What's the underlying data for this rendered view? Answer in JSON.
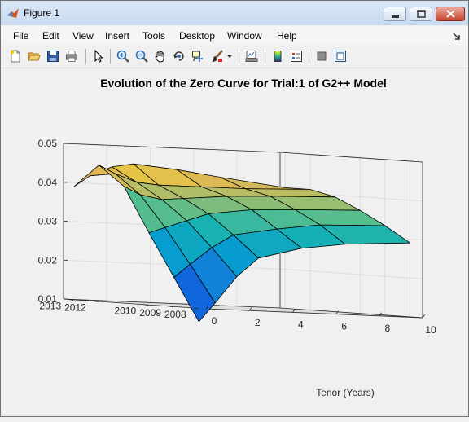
{
  "window": {
    "title": "Figure 1"
  },
  "menu": {
    "items": [
      "File",
      "Edit",
      "View",
      "Insert",
      "Tools",
      "Desktop",
      "Window",
      "Help"
    ]
  },
  "toolbar": {
    "icons": [
      "new-figure-icon",
      "open-file-icon",
      "save-icon",
      "print-icon",
      "select-arrow-icon",
      "zoom-in-icon",
      "zoom-out-icon",
      "pan-hand-icon",
      "rotate-3d-icon",
      "data-cursor-icon",
      "brush-icon",
      "brush-dropdown-icon",
      "link-plot-icon",
      "colorbar-icon",
      "legend-icon",
      "hide-tools-icon",
      "show-tools-icon"
    ]
  },
  "chart_data": {
    "type": "surface",
    "title": "Evolution of the Zero Curve for Trial:1 of G2++ Model",
    "xlabel": "Tenor (Years)",
    "ylabel": "",
    "zlabel": "",
    "x_ticks": [
      "0",
      "2",
      "4",
      "6",
      "8",
      "10"
    ],
    "y_ticks": [
      "2008",
      "2009",
      "2010",
      "2012",
      "2013"
    ],
    "z_ticks": [
      "0.01",
      "0.02",
      "0.03",
      "0.04",
      "0.05"
    ],
    "xlim": [
      0,
      10
    ],
    "ylim": [
      2007.5,
      2013.2
    ],
    "zlim": [
      0.01,
      0.05
    ],
    "colormap": "parula",
    "tenors": [
      0.25,
      1,
      2,
      3,
      5,
      7,
      10
    ],
    "years": [
      2008,
      2009,
      2010,
      2011,
      2012,
      2013
    ],
    "z": [
      [
        0.0065,
        0.0115,
        0.0185,
        0.0235,
        0.0265,
        0.028,
        0.029
      ],
      [
        0.0175,
        0.021,
        0.0255,
        0.029,
        0.031,
        0.0325,
        0.033
      ],
      [
        0.0285,
        0.03,
        0.032,
        0.034,
        0.0355,
        0.036,
        0.0365
      ],
      [
        0.04,
        0.038,
        0.037,
        0.0375,
        0.0385,
        0.039,
        0.0395
      ],
      [
        0.045,
        0.043,
        0.041,
        0.0405,
        0.0405,
        0.0405,
        0.041
      ],
      [
        0.039,
        0.042,
        0.0445,
        0.0455,
        0.0445,
        0.043,
        0.041
      ]
    ],
    "grid": true
  }
}
